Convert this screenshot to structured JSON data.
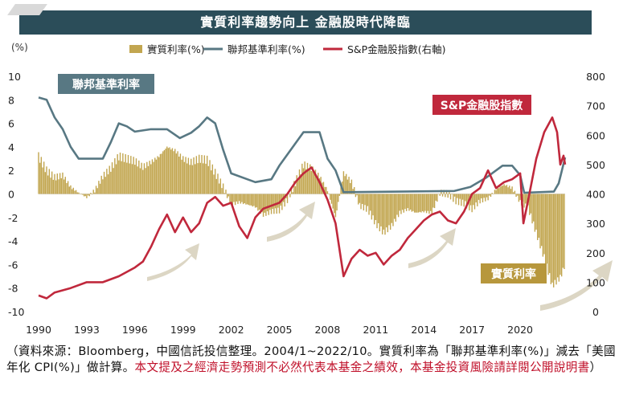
{
  "title": "實質利率趨勢向上  金融股時代降臨",
  "chart_data": {
    "type": "bar+line",
    "y_left_unit": "(%)",
    "ylim_left": [
      -10,
      10
    ],
    "yticks_left": [
      "10",
      "8",
      "6",
      "4",
      "2",
      "0",
      "-2",
      "-4",
      "-6",
      "-8",
      "-10"
    ],
    "ylim_right": [
      0,
      800
    ],
    "yticks_right": [
      "800",
      "700",
      "600",
      "500",
      "400",
      "300",
      "200",
      "100",
      "0"
    ],
    "xlim": [
      1990,
      2022.8
    ],
    "xticks": [
      "1990",
      "1993",
      "1996",
      "1999",
      "2002",
      "2005",
      "2008",
      "2011",
      "2014",
      "2017",
      "2020"
    ],
    "legend": [
      {
        "label": "實質利率(%)",
        "color": "#c2a650"
      },
      {
        "label": "聯邦基準利率(%)",
        "color": "#587883"
      },
      {
        "label": "S&P金融股指數(右軸)",
        "color": "#c0283c"
      }
    ],
    "annotations": {
      "fed_label": "聯邦基準利率",
      "sp_label": "S&P金融股指數",
      "real_label": "實質利率"
    },
    "series": [
      {
        "name": "實質利率(%)",
        "axis": "left",
        "kind": "bar",
        "points": [
          [
            1990,
            3.2
          ],
          [
            1990.5,
            2.0
          ],
          [
            1991,
            1.4
          ],
          [
            1991.5,
            1.6
          ],
          [
            1992,
            0.6
          ],
          [
            1992.5,
            0.1
          ],
          [
            1993,
            -0.3
          ],
          [
            1993.5,
            0.3
          ],
          [
            1994,
            1.5
          ],
          [
            1994.5,
            2.2
          ],
          [
            1995,
            3.2
          ],
          [
            1995.5,
            3.0
          ],
          [
            1996,
            2.8
          ],
          [
            1996.5,
            2.3
          ],
          [
            1997,
            2.7
          ],
          [
            1997.5,
            3.2
          ],
          [
            1998,
            4.0
          ],
          [
            1998.5,
            3.7
          ],
          [
            1999,
            3.0
          ],
          [
            1999.5,
            2.7
          ],
          [
            2000,
            3.0
          ],
          [
            2000.5,
            2.9
          ],
          [
            2001,
            1.8
          ],
          [
            2001.5,
            0.6
          ],
          [
            2002,
            -0.9
          ],
          [
            2002.5,
            -0.7
          ],
          [
            2003,
            -0.9
          ],
          [
            2003.5,
            -1.1
          ],
          [
            2004,
            -1.8
          ],
          [
            2004.5,
            -1.5
          ],
          [
            2005,
            -1.4
          ],
          [
            2005.5,
            -0.5
          ],
          [
            2006,
            1.0
          ],
          [
            2006.5,
            2.5
          ],
          [
            2007,
            2.2
          ],
          [
            2007.5,
            1.5
          ],
          [
            2008,
            0.3
          ],
          [
            2008.5,
            -2.0
          ],
          [
            2009,
            1.8
          ],
          [
            2009.5,
            1.0
          ],
          [
            2010,
            -1.0
          ],
          [
            2010.5,
            -1.3
          ],
          [
            2011,
            -2.5
          ],
          [
            2011.5,
            -3.3
          ],
          [
            2012,
            -2.7
          ],
          [
            2012.5,
            -1.6
          ],
          [
            2013,
            -1.3
          ],
          [
            2013.5,
            -1.6
          ],
          [
            2014,
            -1.5
          ],
          [
            2014.5,
            -1.6
          ],
          [
            2015,
            0.1
          ],
          [
            2015.5,
            0.0
          ],
          [
            2016,
            -0.6
          ],
          [
            2016.5,
            -0.8
          ],
          [
            2017,
            -1.3
          ],
          [
            2017.5,
            -0.6
          ],
          [
            2018,
            -0.4
          ],
          [
            2018.5,
            0.4
          ],
          [
            2019,
            0.8
          ],
          [
            2019.5,
            0.5
          ],
          [
            2020,
            -0.7
          ],
          [
            2020.5,
            -1.2
          ],
          [
            2021,
            -3.3
          ],
          [
            2021.5,
            -5.4
          ],
          [
            2022,
            -7.8
          ],
          [
            2022.5,
            -7.1
          ],
          [
            2022.8,
            -6.0
          ]
        ]
      },
      {
        "name": "聯邦基準利率(%)",
        "axis": "left",
        "kind": "line",
        "points": [
          [
            1990,
            8.2
          ],
          [
            1990.5,
            8.0
          ],
          [
            1991,
            6.5
          ],
          [
            1991.5,
            5.5
          ],
          [
            1992,
            4.0
          ],
          [
            1992.5,
            3.0
          ],
          [
            1994,
            3.0
          ],
          [
            1994.5,
            4.4
          ],
          [
            1995,
            6.0
          ],
          [
            1995.5,
            5.75
          ],
          [
            1996,
            5.3
          ],
          [
            1997,
            5.5
          ],
          [
            1998,
            5.5
          ],
          [
            1998.8,
            4.75
          ],
          [
            1999.5,
            5.2
          ],
          [
            2000,
            5.75
          ],
          [
            2000.5,
            6.5
          ],
          [
            2001,
            6.0
          ],
          [
            2001.5,
            3.75
          ],
          [
            2002,
            1.75
          ],
          [
            2003,
            1.25
          ],
          [
            2003.5,
            1.0
          ],
          [
            2004.5,
            1.25
          ],
          [
            2005,
            2.4
          ],
          [
            2006,
            4.3
          ],
          [
            2006.5,
            5.25
          ],
          [
            2007.5,
            5.25
          ],
          [
            2008,
            3.0
          ],
          [
            2008.5,
            2.0
          ],
          [
            2009,
            0.15
          ],
          [
            2015.9,
            0.25
          ],
          [
            2016.9,
            0.6
          ],
          [
            2017.9,
            1.4
          ],
          [
            2018.9,
            2.4
          ],
          [
            2019.5,
            2.4
          ],
          [
            2020,
            1.6
          ],
          [
            2020.25,
            0.1
          ],
          [
            2022.1,
            0.2
          ],
          [
            2022.4,
            0.9
          ],
          [
            2022.6,
            2.0
          ],
          [
            2022.8,
            3.1
          ]
        ]
      },
      {
        "name": "S&P金融股指數(右軸)",
        "axis": "right",
        "kind": "line",
        "points": [
          [
            1990,
            55
          ],
          [
            1990.5,
            45
          ],
          [
            1991,
            65
          ],
          [
            1992,
            80
          ],
          [
            1993,
            100
          ],
          [
            1994,
            100
          ],
          [
            1995,
            120
          ],
          [
            1996,
            150
          ],
          [
            1996.5,
            170
          ],
          [
            1997,
            220
          ],
          [
            1997.5,
            280
          ],
          [
            1998,
            330
          ],
          [
            1998.5,
            270
          ],
          [
            1999,
            320
          ],
          [
            1999.5,
            270
          ],
          [
            2000,
            300
          ],
          [
            2000.5,
            370
          ],
          [
            2001,
            390
          ],
          [
            2001.5,
            360
          ],
          [
            2002,
            370
          ],
          [
            2002.5,
            290
          ],
          [
            2003,
            250
          ],
          [
            2003.5,
            320
          ],
          [
            2004,
            350
          ],
          [
            2005,
            370
          ],
          [
            2005.5,
            400
          ],
          [
            2006,
            440
          ],
          [
            2006.5,
            470
          ],
          [
            2007,
            490
          ],
          [
            2007.5,
            440
          ],
          [
            2008,
            380
          ],
          [
            2008.5,
            300
          ],
          [
            2009,
            120
          ],
          [
            2009.5,
            180
          ],
          [
            2010,
            210
          ],
          [
            2010.5,
            190
          ],
          [
            2011,
            200
          ],
          [
            2011.5,
            160
          ],
          [
            2012,
            190
          ],
          [
            2012.5,
            210
          ],
          [
            2013,
            250
          ],
          [
            2013.5,
            280
          ],
          [
            2014,
            310
          ],
          [
            2014.5,
            330
          ],
          [
            2015,
            340
          ],
          [
            2015.5,
            310
          ],
          [
            2016,
            300
          ],
          [
            2016.5,
            340
          ],
          [
            2017,
            400
          ],
          [
            2017.5,
            420
          ],
          [
            2018,
            480
          ],
          [
            2018.5,
            420
          ],
          [
            2019,
            440
          ],
          [
            2019.5,
            450
          ],
          [
            2020,
            470
          ],
          [
            2020.2,
            300
          ],
          [
            2020.5,
            380
          ],
          [
            2021,
            520
          ],
          [
            2021.5,
            610
          ],
          [
            2022,
            660
          ],
          [
            2022.3,
            610
          ],
          [
            2022.5,
            500
          ],
          [
            2022.7,
            530
          ],
          [
            2022.8,
            500
          ]
        ]
      }
    ]
  }
}
